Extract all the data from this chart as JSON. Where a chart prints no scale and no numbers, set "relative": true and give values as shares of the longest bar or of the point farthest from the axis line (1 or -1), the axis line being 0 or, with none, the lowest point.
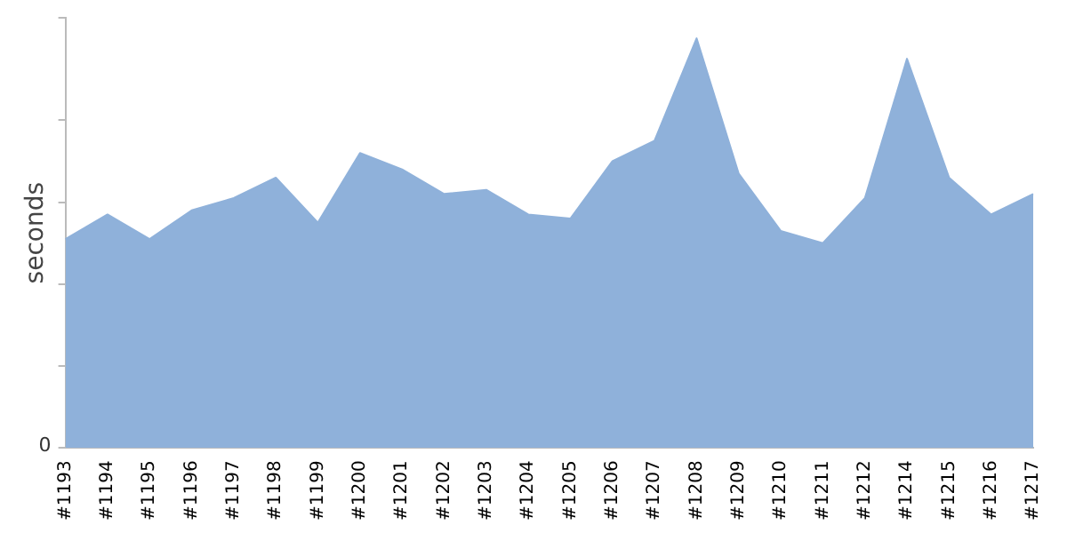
{
  "chart_data": {
    "type": "area",
    "ylabel": "seconds",
    "relative": true,
    "annotations": [
      "0"
    ],
    "categories": [
      "#1193",
      "#1194",
      "#1195",
      "#1196",
      "#1197",
      "#1198",
      "#1199",
      "#1200",
      "#1201",
      "#1202",
      "#1203",
      "#1204",
      "#1205",
      "#1206",
      "#1207",
      "#1208",
      "#1209",
      "#1210",
      "#1211",
      "#1212",
      "#1214",
      "#1215",
      "#1216",
      "#1217"
    ],
    "series": [
      {
        "color": "#8fb1da",
        "values": [
          0.51,
          0.57,
          0.51,
          0.58,
          0.61,
          0.66,
          0.55,
          0.72,
          0.68,
          0.62,
          0.63,
          0.57,
          0.56,
          0.7,
          0.75,
          1,
          0.67,
          0.53,
          0.5,
          0.61,
          0.95,
          0.66,
          0.57,
          0.62
        ]
      }
    ],
    "grid": false,
    "legend": false
  }
}
